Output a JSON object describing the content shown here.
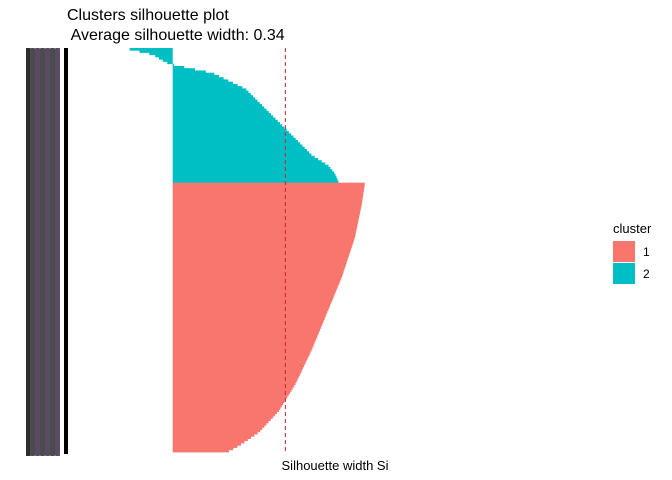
{
  "chart_data": {
    "type": "bar",
    "orientation": "horizontal",
    "title": "Clusters silhouette plot",
    "subtitle": " Average silhouette width: 0.34",
    "xlabel": "Silhouette width Si",
    "ylabel": "",
    "xlim": [
      -0.31,
      0.68
    ],
    "average_silhouette_width": 0.34,
    "grid": false,
    "legend": {
      "title": "cluster",
      "placement": "right",
      "entries": [
        "1",
        "2"
      ]
    },
    "series": [
      {
        "name": "1",
        "color": "#F8766D",
        "n": 120,
        "profile": [
          [
            0,
            0.58
          ],
          [
            0.08,
            0.57
          ],
          [
            0.2,
            0.55
          ],
          [
            0.35,
            0.51
          ],
          [
            0.5,
            0.46
          ],
          [
            0.62,
            0.42
          ],
          [
            0.75,
            0.37
          ],
          [
            0.85,
            0.32
          ],
          [
            0.93,
            0.26
          ],
          [
            0.98,
            0.2
          ],
          [
            1.0,
            0.17
          ]
        ]
      },
      {
        "name": "2",
        "color": "#00BFC4",
        "n": 60,
        "profile": [
          [
            0,
            -0.13
          ],
          [
            0.04,
            -0.06
          ],
          [
            0.1,
            -0.02
          ],
          [
            0.11,
            0.0
          ],
          [
            0.12,
            0.005
          ],
          [
            0.18,
            0.12
          ],
          [
            0.3,
            0.22
          ],
          [
            0.45,
            0.28
          ],
          [
            0.6,
            0.34
          ],
          [
            0.7,
            0.38
          ],
          [
            0.8,
            0.42
          ],
          [
            0.88,
            0.47
          ],
          [
            0.94,
            0.49
          ],
          [
            1.0,
            0.5
          ]
        ]
      }
    ]
  }
}
